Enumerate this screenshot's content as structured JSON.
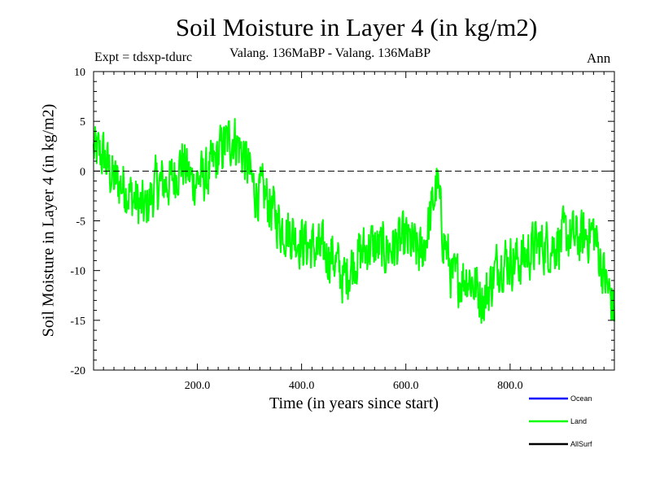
{
  "chart_data": {
    "type": "line",
    "title": "Soil Moisture in Layer 4 (in kg/m2)",
    "subtitle": "Valang. 136MaBP - Valang.  136MaBP",
    "experiment": "Expt = tdsxp-tdurc",
    "period": "Ann",
    "xlabel": "Time (in years since start)",
    "ylabel": "Soil Moisture in Layer 4 (in kg/m2)",
    "xlim": [
      1,
      1000
    ],
    "ylim": [
      -20,
      10
    ],
    "xticks": [
      {
        "value": 200,
        "label": "200.0"
      },
      {
        "value": 400,
        "label": "400.0"
      },
      {
        "value": 600,
        "label": "600.0"
      },
      {
        "value": 800,
        "label": "800.0"
      }
    ],
    "yticks": [
      {
        "value": 10,
        "label": "10"
      },
      {
        "value": 5,
        "label": "5"
      },
      {
        "value": 0,
        "label": "0"
      },
      {
        "value": -5,
        "label": "-5"
      },
      {
        "value": -10,
        "label": "-10"
      },
      {
        "value": -15,
        "label": "-15"
      },
      {
        "value": -20,
        "label": "-20"
      }
    ],
    "reference_line": 0,
    "series": [
      {
        "name": "Ocean",
        "color": "#0000ff",
        "values": []
      },
      {
        "name": "Land",
        "color": "#00ff00",
        "noise": 2.4,
        "trend_points": [
          [
            1,
            2.0
          ],
          [
            20,
            1.5
          ],
          [
            40,
            -1.0
          ],
          [
            60,
            -1.5
          ],
          [
            80,
            -3.0
          ],
          [
            100,
            -4.0
          ],
          [
            120,
            -1.5
          ],
          [
            150,
            -1.0
          ],
          [
            170,
            1.0
          ],
          [
            190,
            -1.0
          ],
          [
            220,
            -0.5
          ],
          [
            250,
            2.5
          ],
          [
            270,
            3.5
          ],
          [
            290,
            1.5
          ],
          [
            310,
            -2.0
          ],
          [
            330,
            -2.5
          ],
          [
            360,
            -5.5
          ],
          [
            400,
            -7.0
          ],
          [
            430,
            -8.0
          ],
          [
            460,
            -8.5
          ],
          [
            480,
            -11.0
          ],
          [
            500,
            -9.0
          ],
          [
            530,
            -7.5
          ],
          [
            560,
            -8.0
          ],
          [
            600,
            -7.0
          ],
          [
            630,
            -8.5
          ],
          [
            650,
            -4.0
          ],
          [
            660,
            -1.0
          ],
          [
            670,
            -6.0
          ],
          [
            690,
            -11.0
          ],
          [
            720,
            -10.5
          ],
          [
            750,
            -13.0
          ],
          [
            780,
            -9.0
          ],
          [
            820,
            -9.0
          ],
          [
            850,
            -7.5
          ],
          [
            880,
            -7.5
          ],
          [
            910,
            -6.5
          ],
          [
            930,
            -7.0
          ],
          [
            960,
            -6.0
          ],
          [
            980,
            -10.5
          ],
          [
            1000,
            -14.0
          ]
        ]
      },
      {
        "name": "AllSurf",
        "color": "#000000",
        "values": []
      }
    ],
    "legend_position": "bottom-right"
  }
}
